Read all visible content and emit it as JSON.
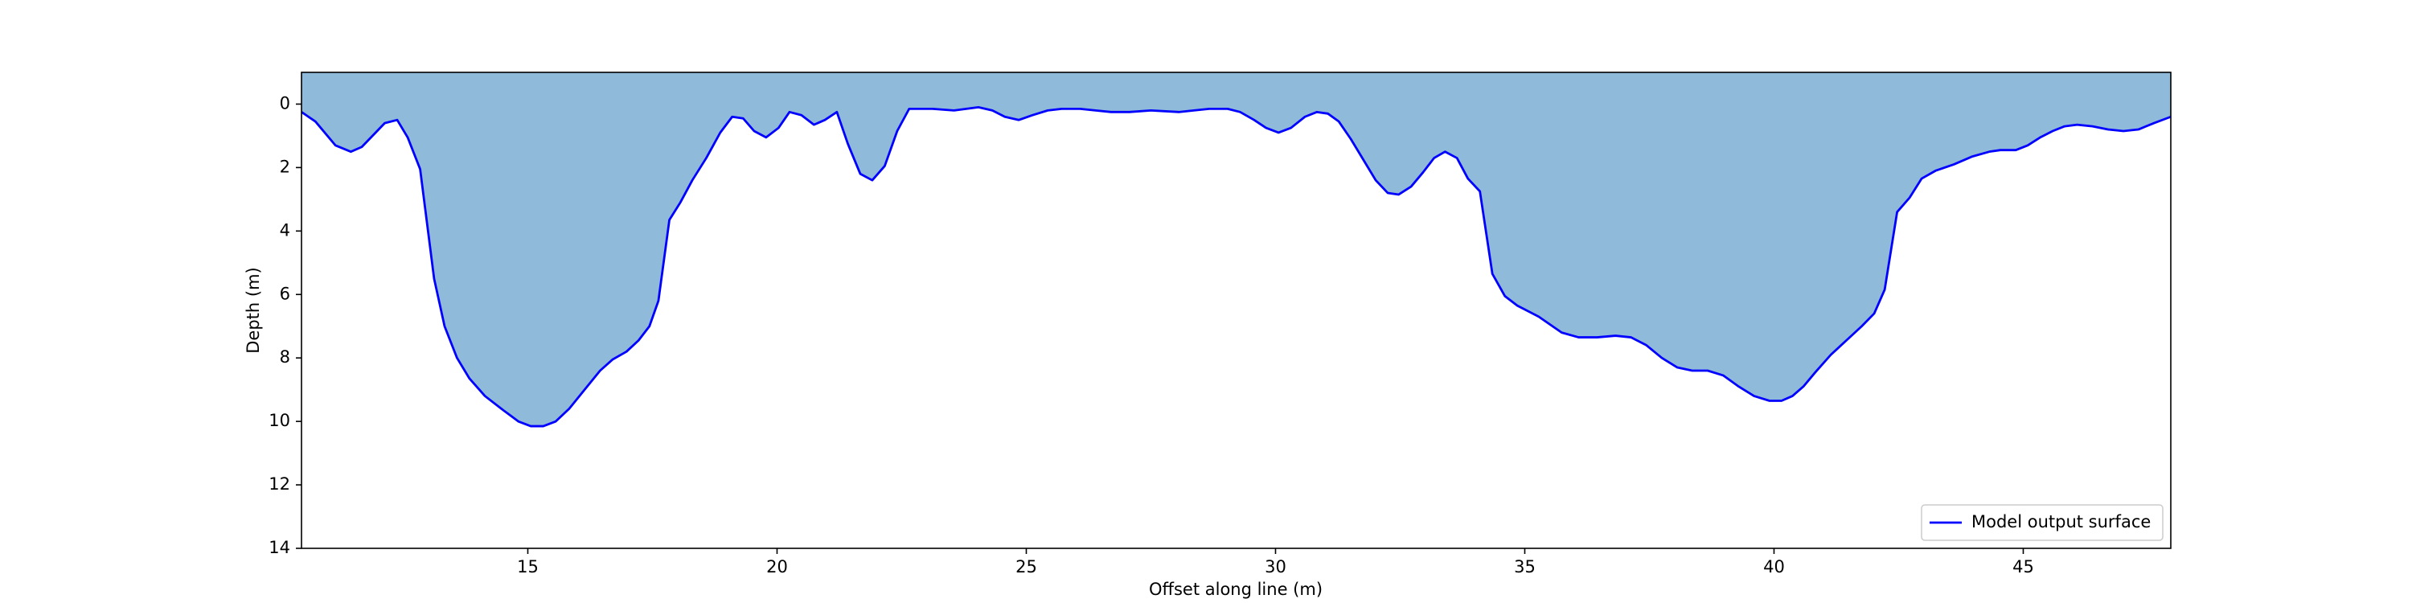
{
  "chart_data": {
    "type": "area",
    "xlabel": "Offset along line (m)",
    "ylabel": "Depth (m)",
    "xlim": [
      10.46,
      47.96
    ],
    "ylim": [
      14,
      -1
    ],
    "xticks": [
      15,
      20,
      25,
      30,
      35,
      40,
      45
    ],
    "yticks": [
      0,
      2,
      4,
      6,
      8,
      10,
      12,
      14
    ],
    "legend": "lower right",
    "x": [
      10.46,
      10.74,
      11.14,
      11.45,
      11.67,
      12.13,
      12.38,
      12.59,
      12.84,
      13.12,
      13.33,
      13.58,
      13.83,
      14.14,
      14.51,
      14.81,
      15.06,
      15.31,
      15.56,
      15.83,
      16.14,
      16.45,
      16.7,
      16.98,
      17.22,
      17.44,
      17.62,
      17.84,
      18.06,
      18.3,
      18.58,
      18.86,
      19.1,
      19.32,
      19.54,
      19.78,
      20.03,
      20.25,
      20.49,
      20.74,
      20.96,
      21.2,
      21.42,
      21.67,
      21.91,
      22.16,
      22.41,
      22.65,
      23.12,
      23.55,
      24.04,
      24.32,
      24.57,
      24.85,
      25.12,
      25.43,
      25.71,
      26.08,
      26.39,
      26.7,
      27.07,
      27.5,
      28.06,
      28.36,
      28.67,
      29.04,
      29.29,
      29.57,
      29.81,
      30.06,
      30.31,
      30.59,
      30.83,
      31.05,
      31.27,
      31.51,
      31.76,
      32.01,
      32.25,
      32.47,
      32.72,
      32.96,
      33.18,
      33.4,
      33.64,
      33.86,
      34.1,
      34.35,
      34.6,
      34.85,
      35.28,
      35.74,
      36.08,
      36.45,
      36.82,
      37.13,
      37.44,
      37.75,
      38.06,
      38.36,
      38.67,
      38.98,
      39.29,
      39.6,
      39.91,
      40.15,
      40.37,
      40.59,
      40.83,
      41.14,
      41.45,
      41.76,
      42.01,
      42.22,
      42.47,
      42.72,
      42.96,
      43.24,
      43.61,
      43.98,
      44.32,
      44.54,
      44.85,
      45.09,
      45.34,
      45.59,
      45.83,
      46.08,
      46.39,
      46.7,
      47.01,
      47.31,
      47.62,
      47.96
    ],
    "series": [
      {
        "name": "Model output surface",
        "color": "#0000ff",
        "fill_color": "#8fbada",
        "values": [
          0.25,
          0.55,
          1.3,
          1.5,
          1.35,
          0.6,
          0.5,
          1.05,
          2.05,
          5.5,
          7.0,
          8.0,
          8.65,
          9.2,
          9.65,
          10.0,
          10.15,
          10.15,
          10.0,
          9.6,
          9.0,
          8.4,
          8.05,
          7.8,
          7.45,
          7.0,
          6.2,
          3.65,
          3.1,
          2.4,
          1.7,
          0.9,
          0.4,
          0.45,
          0.85,
          1.05,
          0.75,
          0.25,
          0.35,
          0.65,
          0.5,
          0.25,
          1.25,
          2.2,
          2.4,
          1.95,
          0.85,
          0.15,
          0.15,
          0.2,
          0.1,
          0.2,
          0.4,
          0.5,
          0.35,
          0.2,
          0.15,
          0.15,
          0.2,
          0.25,
          0.25,
          0.2,
          0.25,
          0.2,
          0.15,
          0.15,
          0.25,
          0.5,
          0.75,
          0.9,
          0.75,
          0.4,
          0.25,
          0.3,
          0.55,
          1.1,
          1.75,
          2.4,
          2.8,
          2.85,
          2.6,
          2.15,
          1.7,
          1.5,
          1.7,
          2.35,
          2.75,
          5.35,
          6.05,
          6.35,
          6.7,
          7.2,
          7.35,
          7.35,
          7.3,
          7.35,
          7.6,
          8.0,
          8.3,
          8.4,
          8.4,
          8.55,
          8.9,
          9.2,
          9.35,
          9.35,
          9.2,
          8.9,
          8.45,
          7.9,
          7.45,
          7.0,
          6.6,
          5.85,
          3.4,
          2.95,
          2.35,
          2.1,
          1.9,
          1.65,
          1.5,
          1.45,
          1.45,
          1.3,
          1.05,
          0.85,
          0.7,
          0.65,
          0.7,
          0.8,
          0.85,
          0.8,
          0.6,
          0.4
        ]
      }
    ]
  }
}
